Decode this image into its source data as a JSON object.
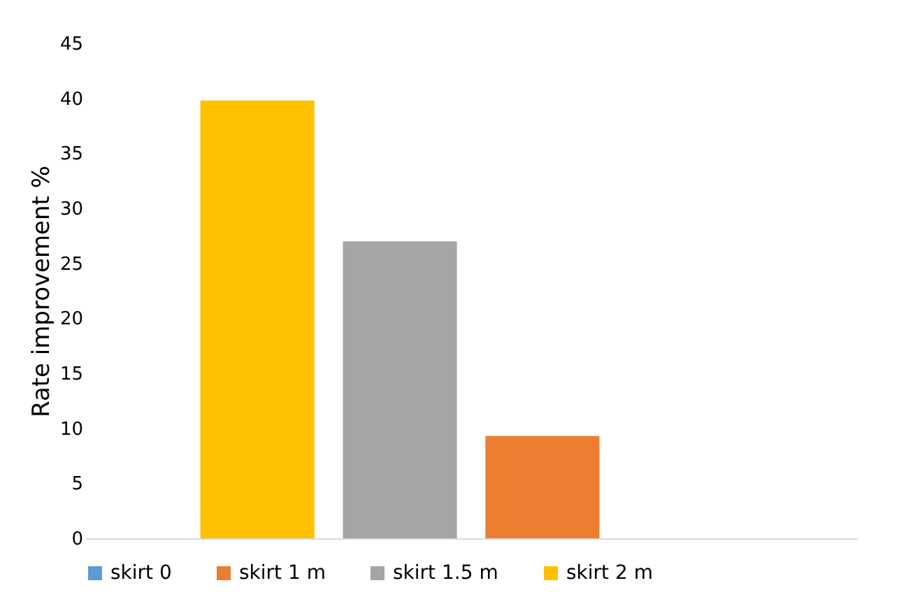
{
  "chart_data": {
    "type": "bar",
    "ylabel": "Rate improvement %",
    "categories": [
      null
    ],
    "series": [
      {
        "name": "skirt 0",
        "color": "#5b9bd5",
        "values": [
          0
        ]
      },
      {
        "name": "skirt 1 m",
        "color": "#ed7d31",
        "values": [
          9.3
        ]
      },
      {
        "name": "skirt 1.5 m",
        "color": "#a5a5a5",
        "values": [
          27
        ]
      },
      {
        "name": "skirt 2 m",
        "color": "#ffc000",
        "values": [
          39.8
        ]
      }
    ],
    "ylim": [
      0,
      45
    ],
    "yticks": [
      0,
      5,
      10,
      15,
      20,
      25,
      30,
      35,
      40,
      45
    ],
    "grid": false,
    "legend": "bottom",
    "tick_labels": "y"
  }
}
